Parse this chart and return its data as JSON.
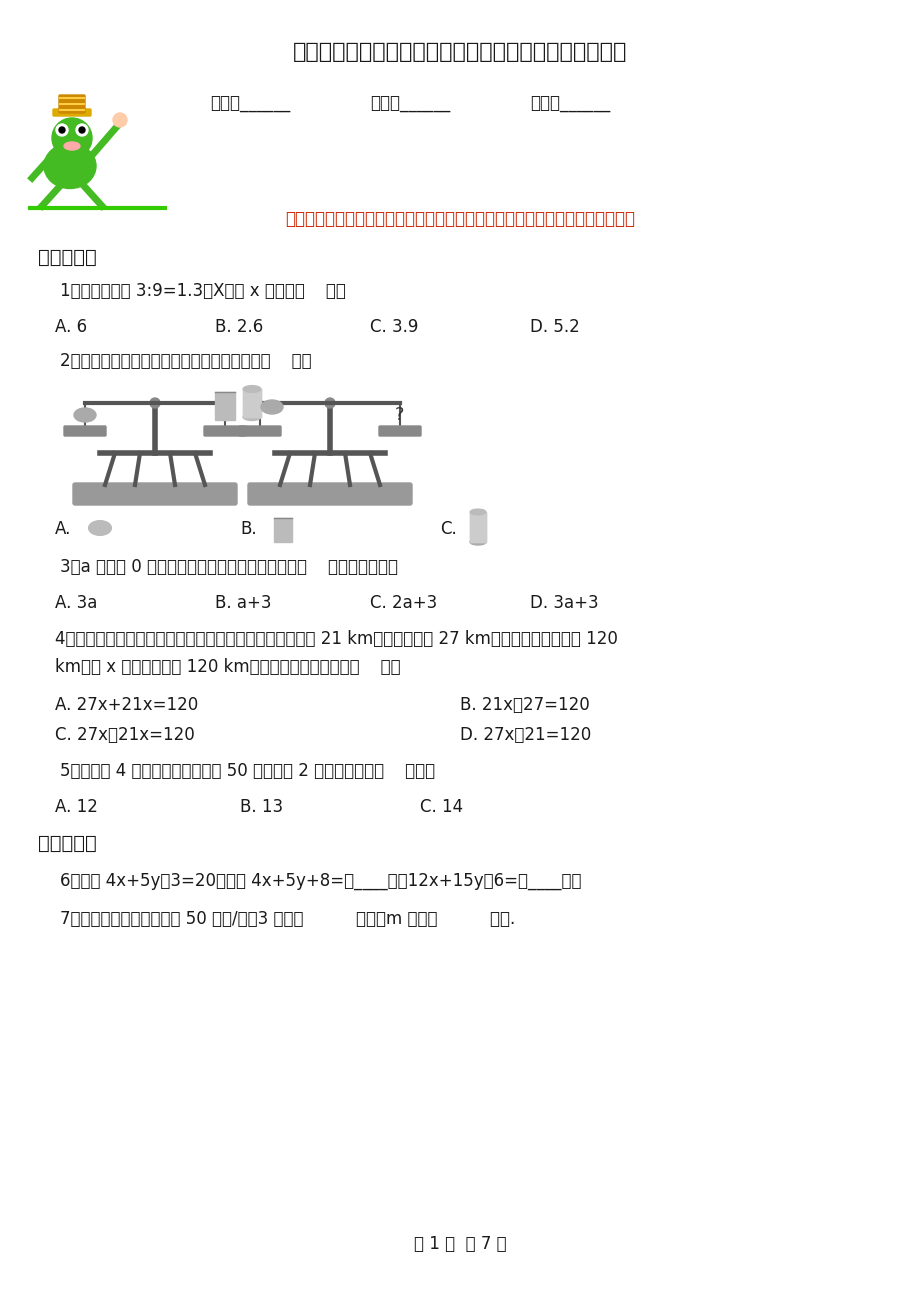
{
  "title": "数学五年级下册第七单元《用方程解决问题》阶段测评卷",
  "field1": "姓名：______",
  "field2": "班级：______",
  "field3": "成绩：______",
  "intro": "同学们，经过一段时间的学习，你一定长进不少，让我们好好检验一下自己吧！",
  "sec1": "一、选择题",
  "q1": "1．已知有比例 3:9=1.3：X，则 x 的值是（    ）。",
  "q1a": "A. 6",
  "q1b": "B. 2.6",
  "q1c": "C. 3.9",
  "q1d": "D. 5.2",
  "q2": "2．要保持天平平衡，右边应该添加的物品是（    ）。",
  "q2a": "A.",
  "q2b": "B.",
  "q2c": "C.",
  "q3": "3．a 是大于 0 的自然数，下列四个算式的结果，（    ）一定是奇数。",
  "q3a": "A. 3a",
  "q3b": "B. a+3",
  "q3c": "C. 2a+3",
  "q3d": "D. 3a+3",
  "q4l1": "4．甲、乙两船同时从同一码头起航向西而行，甲船每时行 21 km，乙船每时行 27 km，多少时后两船相距 120",
  "q4l2": "km？设 x 时后两船相距 120 km，则所列方程正确的是（    ）。",
  "q4a": "A. 27x+21x=120",
  "q4b": "B. 21x－27=120",
  "q4c": "C. 27x－21x=120",
  "q4d": "D. 27x－21=120",
  "q5": "5．乐乐买 4 支钢笔，付给营业员 50 元，找回 2 元，每支钢笔（    ）元。",
  "q5a": "A. 12",
  "q5b": "B. 13",
  "q5c": "C. 14",
  "sec2": "二、填空题",
  "q6": "6．如果 4x+5y－3=20，那么 4x+5y+8=（____），12x+15y－6=（____）。",
  "q7": "7．一辆汽车的行驶速度为 50 千米/时，3 小时行          千米，m 小时行          千米.",
  "footer": "第 1 页  共 7 页",
  "bg": "#ffffff",
  "black": "#1a1a1a",
  "red": "#cc2200",
  "gray": "#888888"
}
